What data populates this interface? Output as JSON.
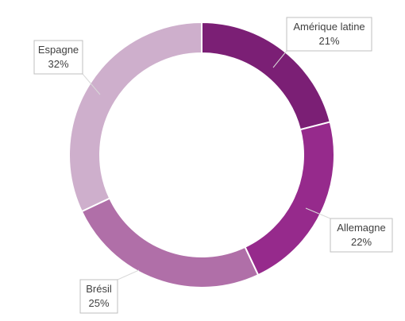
{
  "chart_data": {
    "type": "pie",
    "style": "doughnut",
    "title": "",
    "legend": "none",
    "series": [
      {
        "categories": [
          "Amérique latine",
          "Allemagne",
          "Brésil",
          "Espagne"
        ],
        "values": [
          21,
          22,
          25,
          32
        ],
        "labels": [
          "21%",
          "22%",
          "25%",
          "32%"
        ],
        "colors": [
          "#7b1f75",
          "#962a8c",
          "#b06fa8",
          "#ceafcc"
        ]
      }
    ]
  }
}
